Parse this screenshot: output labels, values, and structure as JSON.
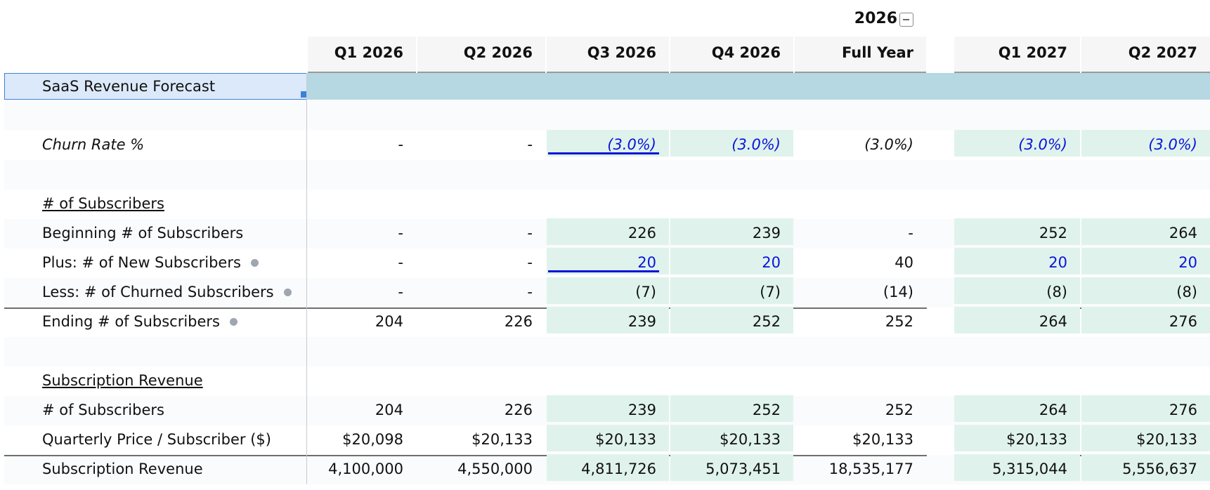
{
  "group_header": {
    "year": "2026",
    "collapse_icon": "minus-square-icon"
  },
  "columns": [
    "Q1 2026",
    "Q2 2026",
    "Q3 2026",
    "Q4 2026",
    "Full Year",
    "Q1 2027",
    "Q2 2027"
  ],
  "title": "SaaS Revenue Forecast",
  "colors": {
    "input_blue": "#0a14d9",
    "forecast_green": "#dff3ec",
    "title_band": "#b5d8e2",
    "selection_blue": "#3b82d6"
  },
  "rows": [
    {
      "id": "churn-rate",
      "label": "Churn Rate %",
      "values": [
        "-",
        "-",
        "(3.0%)",
        "(3.0%)",
        "(3.0%)",
        "(3.0%)",
        "(3.0%)"
      ]
    },
    {
      "id": "subscribers-section",
      "label": "# of Subscribers"
    },
    {
      "id": "beginning-subscribers",
      "label": "Beginning # of Subscribers",
      "values": [
        "-",
        "-",
        "226",
        "239",
        "-",
        "252",
        "264"
      ]
    },
    {
      "id": "new-subscribers",
      "label": "Plus: # of New Subscribers",
      "values": [
        "-",
        "-",
        "20",
        "20",
        "40",
        "20",
        "20"
      ]
    },
    {
      "id": "churned-subscribers",
      "label": "Less: # of Churned Subscribers",
      "values": [
        "-",
        "-",
        "(7)",
        "(7)",
        "(14)",
        "(8)",
        "(8)"
      ]
    },
    {
      "id": "ending-subscribers",
      "label": "Ending # of Subscribers",
      "values": [
        "204",
        "226",
        "239",
        "252",
        "252",
        "264",
        "276"
      ]
    },
    {
      "id": "revenue-section",
      "label": "Subscription Revenue"
    },
    {
      "id": "revenue-subscribers",
      "label": "# of Subscribers",
      "values": [
        "204",
        "226",
        "239",
        "252",
        "252",
        "264",
        "276"
      ]
    },
    {
      "id": "quarterly-price",
      "label": "Quarterly Price / Subscriber ($)",
      "values": [
        "$20,098",
        "$20,133",
        "$20,133",
        "$20,133",
        "$20,133",
        "$20,133",
        "$20,133"
      ]
    },
    {
      "id": "subscription-revenue",
      "label": "Subscription Revenue",
      "values": [
        "4,100,000",
        "4,550,000",
        "4,811,726",
        "5,073,451",
        "18,535,177",
        "5,315,044",
        "5,556,637"
      ]
    }
  ]
}
